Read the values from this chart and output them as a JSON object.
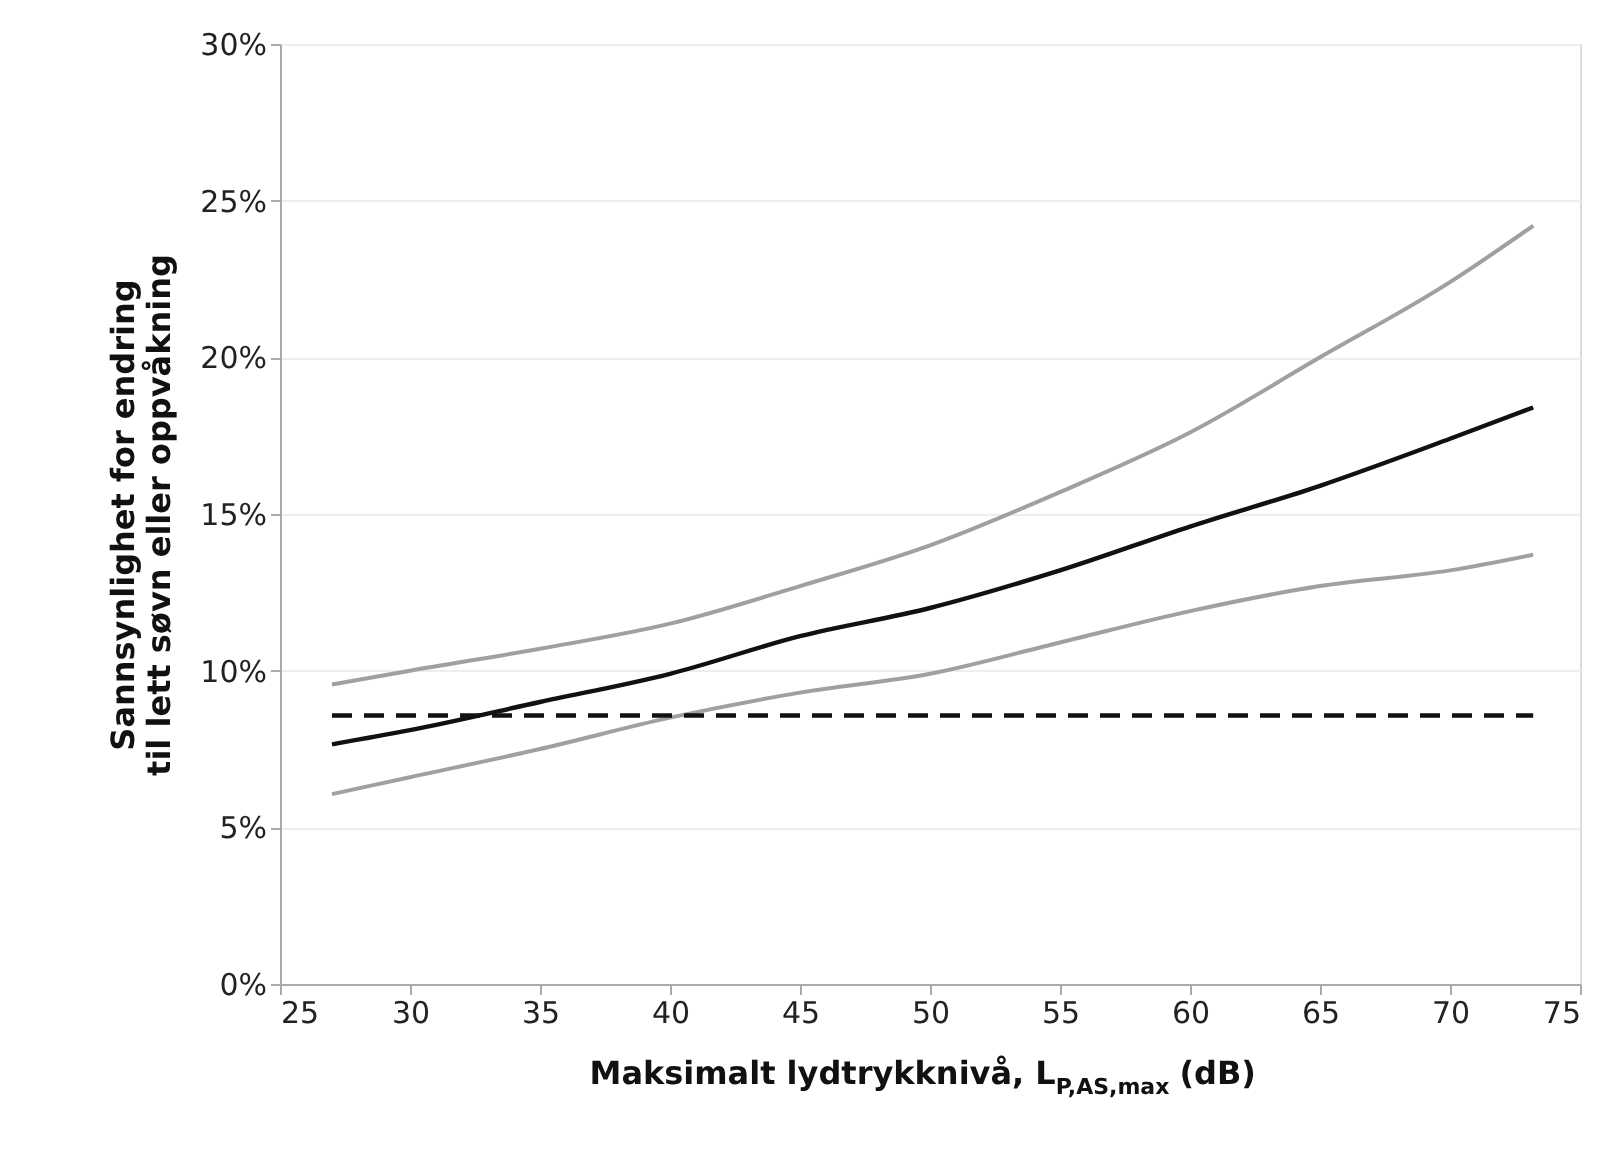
{
  "chart_data": {
    "type": "line",
    "xlabel": "Maksimalt lydtrykknivå, L$_{P,AS,max}$ (dB)",
    "ylabel": "Sannsynlighet for endring\ntil lett søvn eller oppvåkning",
    "x": [
      27,
      30,
      35,
      40,
      45,
      50,
      55,
      60,
      65,
      70,
      73.2
    ],
    "series": [
      {
        "color": "#a0a0a0",
        "line_style": "solid",
        "values": [
          9.56,
          10.0,
          10.7,
          11.5,
          12.7,
          14.0,
          15.7,
          17.6,
          20.0,
          22.4,
          24.2
        ]
      },
      {
        "color": "#111111",
        "line_style": "solid",
        "values": [
          7.65,
          8.1,
          9.0,
          9.9,
          11.1,
          12.0,
          13.2,
          14.6,
          15.9,
          17.4,
          18.4
        ]
      },
      {
        "color": "#a0a0a0",
        "line_style": "solid",
        "values": [
          6.06,
          6.6,
          7.5,
          8.5,
          9.3,
          9.9,
          10.9,
          11.9,
          12.7,
          13.2,
          13.7
        ]
      },
      {
        "color": "#111111",
        "line_style": "dashed",
        "values": [
          8.57,
          8.57,
          8.57,
          8.57,
          8.57,
          8.57,
          8.57,
          8.57,
          8.57,
          8.57,
          8.57
        ]
      }
    ],
    "xlim": [
      25,
      75
    ],
    "xticks": [
      25,
      30,
      35,
      40,
      45,
      50,
      55,
      60,
      65,
      70,
      75
    ],
    "ylim": [
      0,
      30
    ],
    "yticks": [
      {
        "value": 0,
        "label": "0%"
      },
      {
        "value": 5,
        "label": "5%"
      },
      {
        "value": 10,
        "label": "10%"
      },
      {
        "value": 15,
        "label": "15%"
      },
      {
        "value": 20,
        "label": "20%"
      },
      {
        "value": 25,
        "label": "25%"
      },
      {
        "value": 30,
        "label": "30%"
      }
    ],
    "grid": "y",
    "marker": "none"
  }
}
